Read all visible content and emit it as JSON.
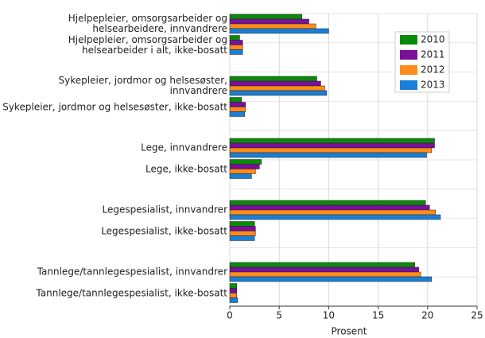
{
  "chart_data": {
    "type": "bar",
    "orientation": "horizontal",
    "x_label": "Prosent",
    "categories": [
      "Hjelpepleier, omsorgsarbeider og\nhelsearbeidere, innvandrere",
      "Hjelpepleier, omsorgsarbeider og\nhelsearbeider i alt, ikke-bosatt",
      "Sykepleier, jordmor og helsesøster,\ninnvandrere",
      "Sykepleier, jordmor og helsesøster, ikke-bosatt",
      "Lege, innvandrere",
      "Lege, ikke-bosatt",
      "Legespesialist, innvandrer",
      "Legespesialist, ikke-bosatt",
      "Tannlege/tannlegespesialist, innvandrer",
      "Tannlege/tannlegespesialist, ikke-bosatt"
    ],
    "series": [
      {
        "name": "2010",
        "color": "#0a8a0a",
        "values": [
          7.3,
          1.0,
          8.8,
          1.2,
          20.7,
          3.2,
          19.8,
          2.5,
          18.7,
          0.7
        ]
      },
      {
        "name": "2011",
        "color": "#7b0f9c",
        "values": [
          8.0,
          1.3,
          9.2,
          1.6,
          20.7,
          3.0,
          20.2,
          2.6,
          19.1,
          0.7
        ]
      },
      {
        "name": "2012",
        "color": "#ff8c1a",
        "values": [
          8.7,
          1.3,
          9.6,
          1.6,
          20.4,
          2.6,
          20.8,
          2.6,
          19.3,
          0.7
        ]
      },
      {
        "name": "2013",
        "color": "#1a7fd6",
        "values": [
          10.0,
          1.3,
          9.8,
          1.5,
          19.9,
          2.2,
          21.3,
          2.5,
          20.4,
          0.8
        ]
      }
    ],
    "xlim": [
      0,
      25
    ],
    "xticks": [
      0,
      5,
      10,
      15,
      20,
      25
    ],
    "grid": true
  }
}
